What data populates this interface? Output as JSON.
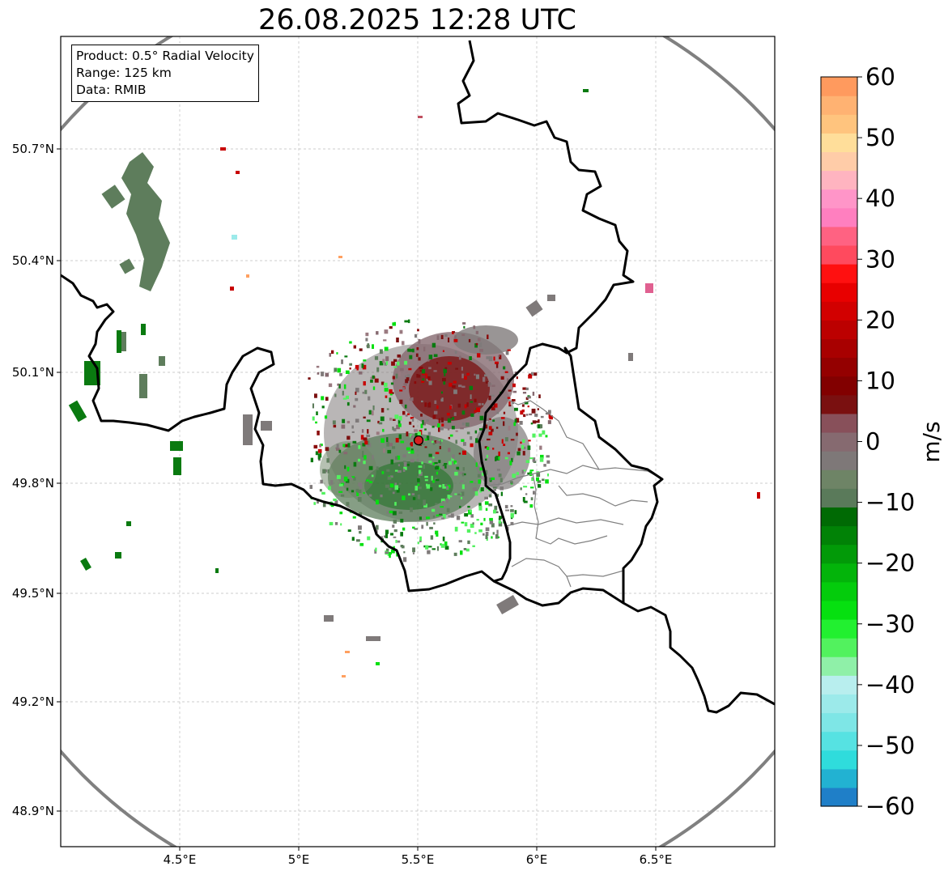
{
  "title": "26.08.2025 12:28 UTC",
  "info_box": {
    "product": "Product: 0.5° Radial Velocity",
    "range": "Range: 125 km",
    "data": "Data: RMIB"
  },
  "axes": {
    "lat_ticks": [
      "50.7°N",
      "50.4°N",
      "50.1°N",
      "49.8°N",
      "49.5°N",
      "49.2°N",
      "48.9°N"
    ],
    "lon_ticks": [
      "4.5°E",
      "5°E",
      "5.5°E",
      "6°E",
      "6.5°E"
    ]
  },
  "colorbar": {
    "label": "m/s",
    "ticks": [
      "60",
      "50",
      "40",
      "30",
      "20",
      "10",
      "0",
      "−10",
      "−20",
      "−30",
      "−40",
      "−50",
      "−60"
    ],
    "min": -60,
    "max": 60,
    "colors": [
      "#1f7fc8",
      "#22b2d2",
      "#2fdcdc",
      "#56e2e2",
      "#7ee6e6",
      "#9ceaea",
      "#b8eeee",
      "#8ff0a8",
      "#52f25e",
      "#22f030",
      "#06e010",
      "#04cc0c",
      "#03b40a",
      "#029a08",
      "#018206",
      "#006a04",
      "#5a7a5a",
      "#6e8466",
      "#7e7878",
      "#866a70",
      "#88505a",
      "#7a1010",
      "#820000",
      "#940000",
      "#a80000",
      "#bc0000",
      "#d20000",
      "#e80000",
      "#ff1010",
      "#ff4a5e",
      "#ff6282",
      "#ff7fbf",
      "#ff95c8",
      "#ffb4c0",
      "#ffcca8",
      "#ffde9a",
      "#ffc47e",
      "#ffb272",
      "#ff9a5e"
    ]
  },
  "colors": {
    "zero_velocity": "#7f7a7a",
    "approaching": "#0a8a10",
    "receding": "#8a0a0a",
    "range_ring": "#808080",
    "border": "#000000",
    "radar_site": "#d42020"
  },
  "radar": {
    "lon": 5.5,
    "lat": 49.91
  }
}
